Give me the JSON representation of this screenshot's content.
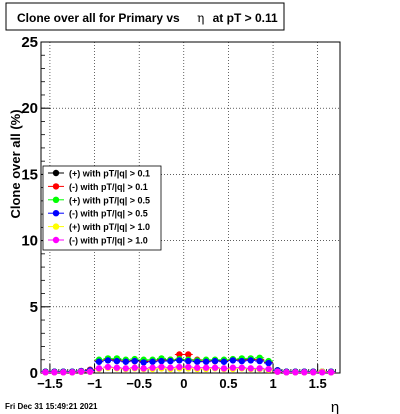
{
  "title": {
    "text": "Clone  over all for Primary vs",
    "symbol": "η",
    "suffix": "at pT > 0.11"
  },
  "footer": {
    "timestamp": "Fri Dec 31 15:49:21 2021"
  },
  "chart_data": {
    "type": "scatter",
    "xlabel": "η",
    "ylabel": "Clone  over all (%)",
    "xlim": [
      -1.6,
      1.75
    ],
    "ylim": [
      0,
      25
    ],
    "x_ticks": [
      -1.5,
      -1,
      -0.5,
      0,
      0.5,
      1,
      1.5
    ],
    "x_tick_labels": [
      "−1.5",
      "−1",
      "−0.5",
      "0",
      "0.5",
      "1",
      "1.5"
    ],
    "y_ticks": [
      0,
      5,
      10,
      15,
      20,
      25
    ],
    "y_tick_labels": [
      "0",
      "5",
      "10",
      "15",
      "20",
      "25"
    ],
    "grid": true,
    "legend_position": "left",
    "legend": [
      {
        "label": "(+) with pT/|q| > 0.1",
        "color": "#000000"
      },
      {
        "label": "(-) with pT/|q| > 0.1",
        "color": "#ff0000"
      },
      {
        "label": "(+) with pT/|q| > 0.5",
        "color": "#00ff00"
      },
      {
        "label": "(-) with pT/|q| > 0.5",
        "color": "#0000ff"
      },
      {
        "label": "(+) with pT/|q| > 1.0",
        "color": "#ffff00"
      },
      {
        "label": "(-) with pT/|q| > 1.0",
        "color": "#ff00ff"
      }
    ],
    "series": [
      {
        "name": "(+) with pT/|q| > 0.1",
        "color": "#000000",
        "x": [
          -1.55,
          -1.45,
          -1.35,
          -1.25,
          -1.15,
          -1.05,
          -0.95,
          -0.85,
          -0.75,
          -0.65,
          -0.55,
          -0.45,
          -0.35,
          -0.25,
          -0.15,
          -0.05,
          0.05,
          0.15,
          0.25,
          0.35,
          0.45,
          0.55,
          0.65,
          0.75,
          0.85,
          0.95,
          1.05,
          1.15,
          1.25,
          1.35,
          1.45,
          1.55,
          1.65
        ],
        "y": [
          0.1,
          0.1,
          0.1,
          0.1,
          0.15,
          0.2,
          0.9,
          1.0,
          1.0,
          0.9,
          0.95,
          0.9,
          0.9,
          1.0,
          0.95,
          1.0,
          1.0,
          0.9,
          0.9,
          0.95,
          0.9,
          1.0,
          1.0,
          1.05,
          1.0,
          0.8,
          0.2,
          0.1,
          0.1,
          0.1,
          0.1,
          0.1,
          0.1
        ]
      },
      {
        "name": "(-) with pT/|q| > 0.1",
        "color": "#ff0000",
        "x": [
          -1.55,
          -1.45,
          -1.35,
          -1.25,
          -1.15,
          -1.05,
          -0.95,
          -0.85,
          -0.75,
          -0.65,
          -0.55,
          -0.45,
          -0.35,
          -0.25,
          -0.15,
          -0.05,
          0.05,
          0.15,
          0.25,
          0.35,
          0.45,
          0.55,
          0.65,
          0.75,
          0.85,
          0.95,
          1.05,
          1.15,
          1.25,
          1.35,
          1.45,
          1.55,
          1.65
        ],
        "y": [
          0.1,
          0.1,
          0.1,
          0.1,
          0.15,
          0.25,
          0.9,
          1.0,
          0.95,
          0.9,
          0.9,
          0.85,
          0.9,
          0.95,
          1.0,
          1.4,
          1.4,
          1.0,
          0.9,
          0.9,
          0.95,
          1.0,
          0.95,
          1.0,
          1.0,
          0.8,
          0.2,
          0.1,
          0.1,
          0.1,
          0.1,
          0.1,
          0.1
        ]
      },
      {
        "name": "(+) with pT/|q| > 0.5",
        "color": "#00ff00",
        "x": [
          -1.55,
          -1.45,
          -1.35,
          -1.25,
          -1.15,
          -1.05,
          -0.95,
          -0.85,
          -0.75,
          -0.65,
          -0.55,
          -0.45,
          -0.35,
          -0.25,
          -0.15,
          -0.05,
          0.05,
          0.15,
          0.25,
          0.35,
          0.45,
          0.55,
          0.65,
          0.75,
          0.85,
          0.95,
          1.05,
          1.15,
          1.25,
          1.35,
          1.45,
          1.55,
          1.65
        ],
        "y": [
          0.1,
          0.1,
          0.1,
          0.1,
          0.15,
          0.2,
          1.0,
          1.1,
          1.1,
          1.0,
          1.05,
          1.0,
          1.0,
          1.1,
          1.0,
          1.05,
          1.0,
          0.95,
          1.0,
          1.0,
          1.0,
          1.05,
          1.1,
          1.1,
          1.15,
          0.9,
          0.2,
          0.1,
          0.1,
          0.1,
          0.1,
          0.1,
          0.1
        ]
      },
      {
        "name": "(-) with pT/|q| > 0.5",
        "color": "#0000ff",
        "x": [
          -1.55,
          -1.45,
          -1.35,
          -1.25,
          -1.15,
          -1.05,
          -0.95,
          -0.85,
          -0.75,
          -0.65,
          -0.55,
          -0.45,
          -0.35,
          -0.25,
          -0.15,
          -0.05,
          0.05,
          0.15,
          0.25,
          0.35,
          0.45,
          0.55,
          0.65,
          0.75,
          0.85,
          0.95,
          1.05,
          1.15,
          1.25,
          1.35,
          1.45,
          1.55,
          1.65
        ],
        "y": [
          0.1,
          0.1,
          0.1,
          0.1,
          0.15,
          0.2,
          0.85,
          0.95,
          0.9,
          0.85,
          0.9,
          0.8,
          0.85,
          0.9,
          0.9,
          0.95,
          0.9,
          0.85,
          0.85,
          0.9,
          0.85,
          0.95,
          0.9,
          0.95,
          0.9,
          0.75,
          0.2,
          0.1,
          0.1,
          0.1,
          0.1,
          0.1,
          0.1
        ]
      },
      {
        "name": "(+) with pT/|q| > 1.0",
        "color": "#ffff00",
        "x": [
          -1.55,
          -1.45,
          -1.35,
          -1.25,
          -1.15,
          -1.05,
          -0.95,
          -0.85,
          -0.75,
          -0.65,
          -0.55,
          -0.45,
          -0.35,
          -0.25,
          -0.15,
          -0.05,
          0.05,
          0.15,
          0.25,
          0.35,
          0.45,
          0.55,
          0.65,
          0.75,
          0.85,
          0.95,
          1.05,
          1.15,
          1.25,
          1.35,
          1.45,
          1.55,
          1.65
        ],
        "y": [
          0.05,
          0.05,
          0.05,
          0.05,
          0.1,
          0.1,
          0.3,
          0.4,
          0.35,
          0.3,
          0.35,
          0.3,
          0.3,
          0.35,
          0.3,
          0.35,
          0.35,
          0.3,
          0.3,
          0.35,
          0.3,
          0.3,
          0.35,
          0.3,
          0.3,
          0.25,
          0.1,
          0.05,
          0.05,
          0.05,
          0.05,
          0.1,
          0.05
        ]
      },
      {
        "name": "(-) with pT/|q| > 1.0",
        "color": "#ff00ff",
        "x": [
          -1.55,
          -1.45,
          -1.35,
          -1.25,
          -1.15,
          -1.05,
          -0.95,
          -0.85,
          -0.75,
          -0.65,
          -0.55,
          -0.45,
          -0.35,
          -0.25,
          -0.15,
          -0.05,
          0.05,
          0.15,
          0.25,
          0.35,
          0.45,
          0.55,
          0.65,
          0.75,
          0.85,
          0.95,
          1.05,
          1.15,
          1.25,
          1.35,
          1.45,
          1.55,
          1.65
        ],
        "y": [
          0.05,
          0.05,
          0.05,
          0.05,
          0.1,
          0.1,
          0.35,
          0.45,
          0.4,
          0.35,
          0.4,
          0.35,
          0.4,
          0.45,
          0.4,
          0.45,
          0.45,
          0.4,
          0.4,
          0.4,
          0.35,
          0.4,
          0.4,
          0.35,
          0.35,
          0.3,
          0.1,
          0.05,
          0.05,
          0.05,
          0.05,
          0.05,
          0.05
        ]
      }
    ]
  }
}
